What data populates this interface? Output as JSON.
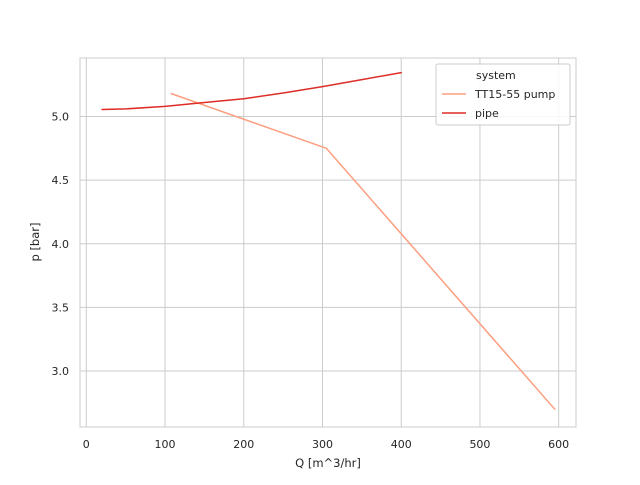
{
  "chart_data": {
    "type": "line",
    "xlabel": "Q [m^3/hr]",
    "ylabel": "p [bar]",
    "xlim": [
      -8,
      622
    ],
    "ylim": [
      2.56,
      5.46
    ],
    "xticks": [
      {
        "value": 0,
        "label": "0"
      },
      {
        "value": 100,
        "label": "100"
      },
      {
        "value": 200,
        "label": "200"
      },
      {
        "value": 300,
        "label": "300"
      },
      {
        "value": 400,
        "label": "400"
      },
      {
        "value": 500,
        "label": "500"
      },
      {
        "value": 600,
        "label": "600"
      }
    ],
    "yticks": [
      {
        "value": 3.0,
        "label": "3.0"
      },
      {
        "value": 3.5,
        "label": "3.5"
      },
      {
        "value": 4.0,
        "label": "4.0"
      },
      {
        "value": 4.5,
        "label": "4.5"
      },
      {
        "value": 5.0,
        "label": "5.0"
      }
    ],
    "grid": true,
    "legend": {
      "title": "system",
      "placement": "top-right"
    },
    "series": [
      {
        "name": "TT15-55 pump",
        "color": "#fc9f80",
        "points": [
          {
            "x": 108,
            "y": 5.18
          },
          {
            "x": 305,
            "y": 4.75
          },
          {
            "x": 595,
            "y": 2.7
          }
        ]
      },
      {
        "name": "pipe",
        "color": "#de2d26",
        "points": [
          {
            "x": 20,
            "y": 5.055
          },
          {
            "x": 50,
            "y": 5.06
          },
          {
            "x": 100,
            "y": 5.08
          },
          {
            "x": 150,
            "y": 5.11
          },
          {
            "x": 200,
            "y": 5.14
          },
          {
            "x": 250,
            "y": 5.185
          },
          {
            "x": 300,
            "y": 5.235
          },
          {
            "x": 350,
            "y": 5.29
          },
          {
            "x": 400,
            "y": 5.345
          }
        ]
      }
    ]
  },
  "colors": {
    "grid": "#cccccc",
    "axis_frame": "#cccccc",
    "text": "#262626"
  }
}
